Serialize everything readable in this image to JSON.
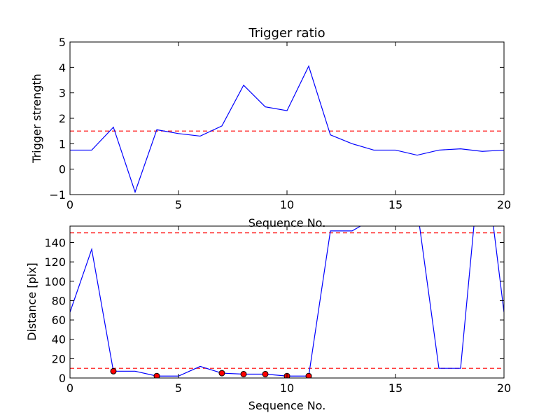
{
  "chart_data": [
    {
      "type": "line",
      "title": "Trigger ratio",
      "xlabel": "Sequence No.",
      "ylabel": "Trigger strength",
      "xlim": [
        0,
        20
      ],
      "ylim": [
        -1,
        5
      ],
      "xticks": [
        "0",
        "5",
        "10",
        "15",
        "20"
      ],
      "yticks": [
        "−1",
        "0",
        "1",
        "2",
        "3",
        "4",
        "5"
      ],
      "grid": false,
      "series": [
        {
          "color": "#0000ff",
          "x": [
            0,
            1,
            2,
            3,
            4,
            5,
            6,
            7,
            8,
            9,
            10,
            11,
            12,
            13,
            14,
            15,
            16,
            17,
            18,
            19,
            20
          ],
          "y": [
            0.75,
            0.75,
            1.65,
            -0.9,
            1.55,
            1.4,
            1.3,
            1.7,
            3.3,
            2.45,
            2.3,
            4.05,
            1.35,
            1.0,
            0.75,
            0.75,
            0.55,
            0.75,
            0.8,
            0.7,
            0.75
          ]
        }
      ],
      "threshold": {
        "y": 1.5,
        "color": "#ff0000",
        "style": "dashed"
      }
    },
    {
      "type": "line",
      "xlabel": "Sequence No.",
      "ylabel": "Distance [pix]",
      "xlim": [
        0,
        20
      ],
      "ylim": [
        0,
        157
      ],
      "xticks": [
        "0",
        "5",
        "10",
        "15",
        "20"
      ],
      "yticks": [
        "0",
        "20",
        "40",
        "60",
        "80",
        "100",
        "120",
        "140"
      ],
      "grid": false,
      "series": [
        {
          "color": "#0000ff",
          "x": [
            0,
            1,
            2,
            3,
            4,
            5,
            6,
            7,
            8,
            9,
            10,
            11,
            12,
            13,
            14,
            15,
            16,
            17,
            18,
            19,
            20
          ],
          "y": [
            68,
            133,
            7,
            7,
            2,
            2,
            12,
            5,
            4,
            4,
            2,
            2,
            152,
            152,
            165,
            180,
            175,
            10,
            10,
            250,
            68
          ]
        }
      ],
      "markers": {
        "color": "#ff0000",
        "x": [
          2,
          4,
          7,
          8,
          9,
          10,
          11
        ],
        "y": [
          7,
          2,
          5,
          4,
          4,
          2,
          2
        ]
      },
      "thresholds": [
        {
          "y": 150,
          "color": "#ff0000",
          "style": "dashed"
        },
        {
          "y": 10,
          "color": "#ff0000",
          "style": "dashed"
        }
      ]
    }
  ]
}
